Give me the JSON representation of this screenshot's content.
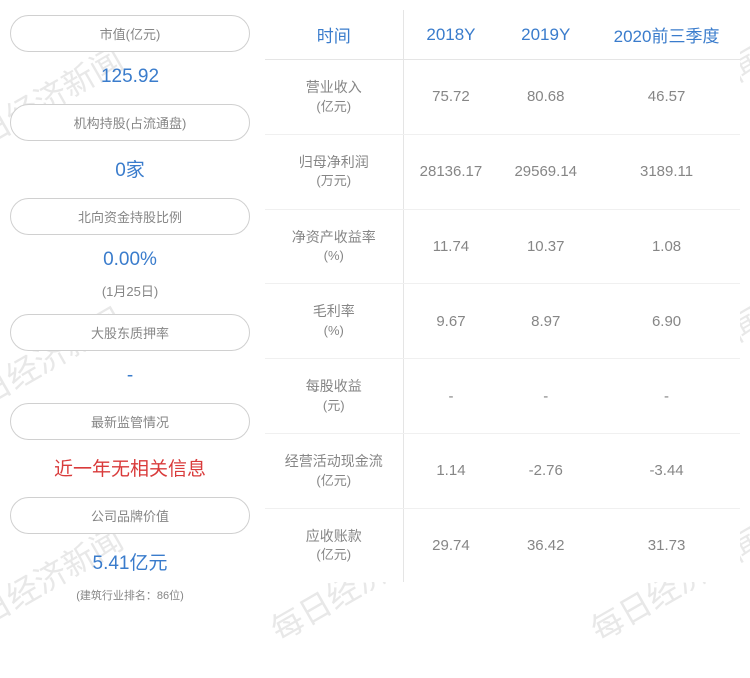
{
  "watermark_text": "每日经济新闻",
  "left_cards": [
    {
      "label": "市值(亿元)",
      "value": "125.92",
      "sub": "",
      "color": "blue"
    },
    {
      "label": "机构持股(占流通盘)",
      "value": "0家",
      "sub": "",
      "color": "blue"
    },
    {
      "label": "北向资金持股比例",
      "value": "0.00%",
      "sub": "(1月25日)",
      "color": "blue"
    },
    {
      "label": "大股东质押率",
      "value": "-",
      "sub": "",
      "color": "blue"
    },
    {
      "label": "最新监管情况",
      "value": "近一年无相关信息",
      "sub": "",
      "color": "red"
    },
    {
      "label": "公司品牌价值",
      "value": "5.41亿元",
      "sub": "(建筑行业排名：86位)",
      "color": "blue",
      "subSmall": true
    }
  ],
  "table": {
    "headers": [
      "时间",
      "2018Y",
      "2019Y",
      "2020前三季度"
    ],
    "rows": [
      {
        "metric": "营业收入",
        "unit": "(亿元)",
        "values": [
          "75.72",
          "80.68",
          "46.57"
        ]
      },
      {
        "metric": "归母净利润",
        "unit": "(万元)",
        "values": [
          "28136.17",
          "29569.14",
          "3189.11"
        ]
      },
      {
        "metric": "净资产收益率",
        "unit": "(%)",
        "values": [
          "11.74",
          "10.37",
          "1.08"
        ]
      },
      {
        "metric": "毛利率",
        "unit": "(%)",
        "values": [
          "9.67",
          "8.97",
          "6.90"
        ]
      },
      {
        "metric": "每股收益",
        "unit": "(元)",
        "values": [
          "-",
          "-",
          "-"
        ]
      },
      {
        "metric": "经营活动现金流",
        "unit": "(亿元)",
        "values": [
          "1.14",
          "-2.76",
          "-3.44"
        ]
      },
      {
        "metric": "应收账款",
        "unit": "(亿元)",
        "values": [
          "29.74",
          "36.42",
          "31.73"
        ]
      }
    ]
  },
  "colors": {
    "blue": "#3a7ccc",
    "red": "#d93b3b",
    "gray_text": "#868686",
    "border": "#d0d0d0",
    "watermark": "#e8e8e8"
  }
}
